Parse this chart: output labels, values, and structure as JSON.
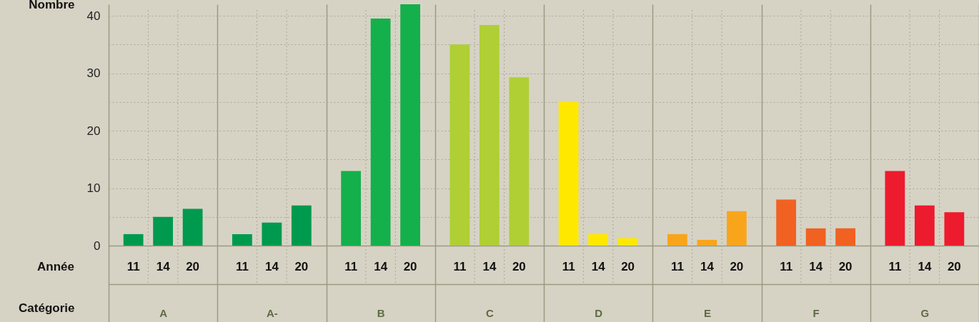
{
  "chart_data": {
    "type": "bar",
    "ylabel": "Nombre",
    "xlabel": "Catégorie",
    "legend_title": "Année",
    "categories": [
      "A",
      "A-",
      "B",
      "C",
      "D",
      "E",
      "F",
      "G"
    ],
    "series": [
      {
        "name": "11",
        "values": [
          2,
          2,
          13,
          35,
          25,
          2,
          8,
          13
        ],
        "colors": [
          "#009a4e",
          "#009a4e",
          "#14b04b",
          "#afcf35",
          "#ffe800",
          "#f9a51b",
          "#f16122",
          "#ed1b2e"
        ]
      },
      {
        "name": "14",
        "values": [
          5,
          4,
          39.5,
          38.4,
          2,
          1,
          3,
          7
        ],
        "colors": [
          "#009a4e",
          "#009a4e",
          "#14b04b",
          "#afcf35",
          "#ffe800",
          "#f9a51b",
          "#f16122",
          "#ed1b2e"
        ]
      },
      {
        "name": "20",
        "values": [
          6.4,
          7,
          42,
          29.3,
          1.3,
          6,
          3,
          5.8
        ],
        "colors": [
          "#009a4e",
          "#009a4e",
          "#14b04b",
          "#afcf35",
          "#ffe800",
          "#f9a51b",
          "#f16122",
          "#ed1b2e"
        ]
      }
    ],
    "ylim": [
      0,
      42
    ],
    "yticks": [
      0,
      {
        "value": 5,
        "label": null
      },
      10,
      {
        "value": 15,
        "label": null
      },
      20,
      {
        "value": 25,
        "label": null
      },
      30,
      {
        "value": 35,
        "label": null
      },
      40
    ],
    "grid": true
  }
}
